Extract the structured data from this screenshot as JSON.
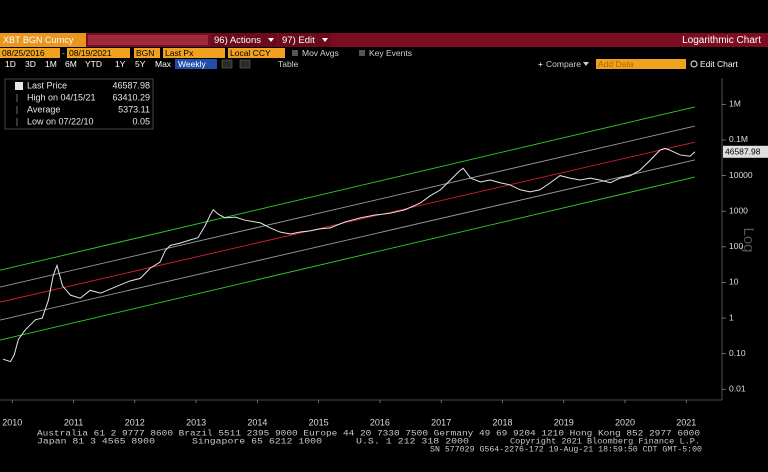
{
  "toolbar": {
    "security": "XBT BGN Curncy",
    "actions": "96) Actions",
    "edit": "97) Edit",
    "chart_kind": "Logarithmic Chart",
    "start_date": "08/25/2016",
    "date_sep": "-",
    "end_date": "08/19/2021",
    "source": "BGN",
    "field": "Last Px",
    "currency": "Local CCY",
    "mov_avgs": "Mov Avgs",
    "key_events": "Key Events",
    "ranges": [
      "1D",
      "3D",
      "1M",
      "6M",
      "YTD",
      "1Y",
      "5Y",
      "Max"
    ],
    "period": "Weekly",
    "table": "Table",
    "compare": "Compare",
    "add_data": "Add Data",
    "edit_chart": "Edit Chart"
  },
  "chart_data": {
    "type": "line",
    "log_scale": true,
    "y_label": "Log",
    "stats": [
      {
        "label": "Last Price",
        "value": 46587.98
      },
      {
        "label": "High on 04/15/21",
        "value": 63410.29
      },
      {
        "label": "Average",
        "value": 5373.11
      },
      {
        "label": "Low on 07/22/10",
        "value": 0.05
      }
    ],
    "xlim": [
      2010.3,
      2022.05
    ],
    "xticks": [
      {
        "value": 2010.5,
        "label": "2010"
      },
      {
        "value": 2011.5,
        "label": "2011"
      },
      {
        "value": 2012.5,
        "label": "2012"
      },
      {
        "value": 2013.5,
        "label": "2013"
      },
      {
        "value": 2014.5,
        "label": "2014"
      },
      {
        "value": 2015.5,
        "label": "2015"
      },
      {
        "value": 2016.5,
        "label": "2016"
      },
      {
        "value": 2017.5,
        "label": "2017"
      },
      {
        "value": 2018.5,
        "label": "2018"
      },
      {
        "value": 2019.5,
        "label": "2019"
      },
      {
        "value": 2020.5,
        "label": "2020"
      },
      {
        "value": 2021.5,
        "label": "2021"
      }
    ],
    "ylim": [
      0.005,
      5500000
    ],
    "yticks": [
      {
        "value": 1000000,
        "label": "1M"
      },
      {
        "value": 100000,
        "label": "0.1M"
      },
      10000,
      1000,
      100,
      10,
      1,
      {
        "value": 0.1,
        "label": "0.10"
      },
      0.01
    ],
    "series": [
      {
        "color": "#e6e6e6",
        "x": [
          2010.35,
          2010.47,
          2010.53,
          2010.6,
          2010.71,
          2010.88,
          2010.99,
          2011.09,
          2011.17,
          2011.23,
          2011.32,
          2011.45,
          2011.61,
          2011.77,
          2011.94,
          2012.1,
          2012.26,
          2012.42,
          2012.59,
          2012.75,
          2012.91,
          2013.0,
          2013.08,
          2013.24,
          2013.4,
          2013.53,
          2013.65,
          2013.73,
          2013.78,
          2013.86,
          2013.97,
          2014.14,
          2014.3,
          2014.55,
          2014.71,
          2014.87,
          2015.04,
          2015.2,
          2015.36,
          2015.52,
          2015.69,
          2015.93,
          2016.18,
          2016.42,
          2016.67,
          2016.91,
          2017.16,
          2017.32,
          2017.49,
          2017.65,
          2017.81,
          2017.86,
          2017.98,
          2018.14,
          2018.3,
          2018.46,
          2018.62,
          2018.79,
          2018.95,
          2019.11,
          2019.28,
          2019.44,
          2019.6,
          2019.77,
          2019.93,
          2020.09,
          2020.26,
          2020.42,
          2020.58,
          2020.74,
          2020.91,
          2021.07,
          2021.15,
          2021.23,
          2021.4,
          2021.56,
          2021.64
        ],
        "values": [
          0.07,
          0.06,
          0.09,
          0.25,
          0.46,
          0.9,
          1,
          3.2,
          16,
          30,
          8,
          4.4,
          3.6,
          6,
          5,
          6.5,
          8.5,
          11,
          13,
          25,
          37,
          80,
          110,
          127,
          155,
          180,
          400,
          780,
          1100,
          830,
          650,
          680,
          560,
          470,
          340,
          260,
          230,
          260,
          280,
          320,
          340,
          500,
          650,
          780,
          880,
          1100,
          1700,
          2700,
          4000,
          7500,
          14000,
          16000,
          8500,
          6600,
          7500,
          6300,
          5500,
          4000,
          3500,
          4000,
          6300,
          10000,
          8500,
          7500,
          8500,
          7500,
          6300,
          8500,
          9800,
          14000,
          27000,
          52000,
          58000,
          52000,
          38000,
          35000,
          46587.98
        ]
      },
      {
        "color": "#2fd12f",
        "x": [
          2010.3,
          2021.64
        ],
        "values": [
          22,
          850000
        ]
      },
      {
        "color": "#9a9a9a",
        "x": [
          2010.3,
          2021.64
        ],
        "values": [
          7.4,
          246000
        ]
      },
      {
        "color": "#d4202f",
        "x": [
          2010.3,
          2021.64
        ],
        "values": [
          2.8,
          87000
        ]
      },
      {
        "color": "#9a9a9a",
        "x": [
          2010.3,
          2021.64
        ],
        "values": [
          0.88,
          27500
        ]
      },
      {
        "color": "#2fd12f",
        "x": [
          2010.3,
          2021.64
        ],
        "values": [
          0.24,
          9100
        ]
      }
    ]
  },
  "footer": [
    "Australia 61 2 9777 8600 Brazil 5511 2395 9000 Europe 44 20 7330 7500 Germany 49 69 9204 1210 Hong Kong 852 2977 6000",
    "Japan 81 3 4565 8900",
    "Singapore 65 6212 1000",
    "U.S. 1 212 318 2000",
    "Copyright 2021 Bloomberg Finance L.P.",
    "SN 577029 G564-2276-172 19-Aug-21 18:59:50 CDT GMT-5:00"
  ]
}
